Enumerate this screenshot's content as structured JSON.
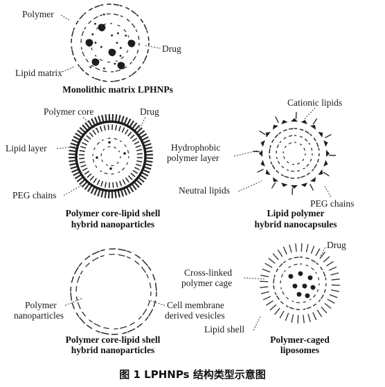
{
  "panels": {
    "monolithic": {
      "title": "Monolithic matrix LPHNPs",
      "labels": {
        "polymer": "Polymer",
        "drug": "Drug",
        "lipid_matrix": "Lipid matrix"
      }
    },
    "core_shell_1": {
      "title_line1": "Polymer core-lipid shell",
      "title_line2": "hybrid nanoparticles",
      "labels": {
        "polymer_core": "Polymer core",
        "drug": "Drug",
        "lipid_layer": "Lipid layer",
        "peg_chains": "PEG chains"
      }
    },
    "nanocapsules": {
      "title_line1": "Lipid polymer",
      "title_line2": "hybrid nanocapsules",
      "labels": {
        "cationic_lipids": "Cationic lipids",
        "hydrophobic_1": "Hydrophobic",
        "hydrophobic_2": "polymer layer",
        "neutral_lipids": "Neutral lipids",
        "peg_chains": "PEG chains"
      }
    },
    "core_shell_2": {
      "title_line1": "Polymer core-lipid shell",
      "title_line2": "hybrid nanoparticles",
      "labels": {
        "polymer_1": "Polymer",
        "polymer_2": "nanoparticles",
        "cell_membrane_1": "Cell membrane",
        "cell_membrane_2": "derived vesicles"
      }
    },
    "caged": {
      "title_line1": "Polymer-caged",
      "title_line2": "liposomes",
      "labels": {
        "drug": "Drug",
        "cross_linked_1": "Cross-linked",
        "cross_linked_2": "polymer cage",
        "lipid_shell": "Lipid shell"
      }
    }
  },
  "caption": "图 1   LPHNPs 结构类型示意图"
}
